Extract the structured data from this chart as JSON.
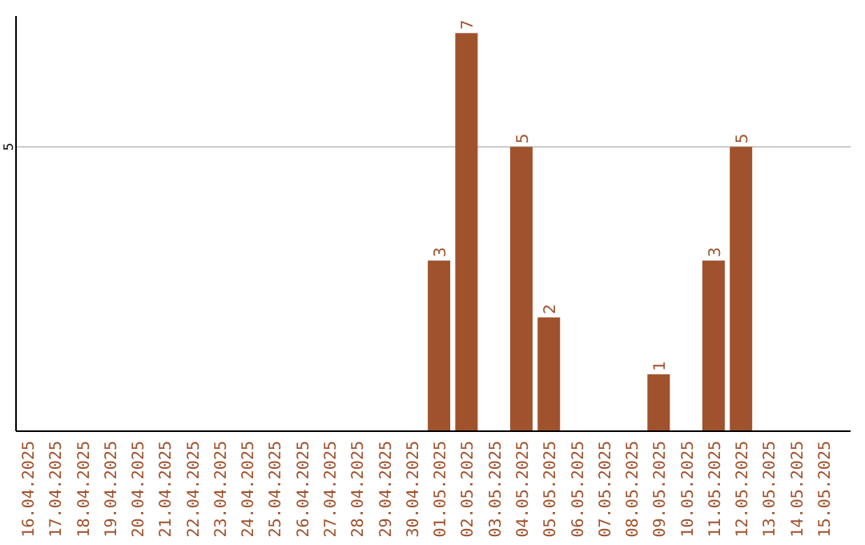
{
  "chart_data": {
    "type": "bar",
    "categories": [
      "16.04.2025",
      "17.04.2025",
      "18.04.2025",
      "19.04.2025",
      "20.04.2025",
      "21.04.2025",
      "22.04.2025",
      "23.04.2025",
      "24.04.2025",
      "25.04.2025",
      "26.04.2025",
      "27.04.2025",
      "28.04.2025",
      "29.04.2025",
      "30.04.2025",
      "01.05.2025",
      "02.05.2025",
      "03.05.2025",
      "04.05.2025",
      "05.05.2025",
      "06.05.2025",
      "07.05.2025",
      "08.05.2025",
      "09.05.2025",
      "10.05.2025",
      "11.05.2025",
      "12.05.2025",
      "13.05.2025",
      "14.05.2025",
      "15.05.2025"
    ],
    "values": [
      null,
      null,
      null,
      null,
      null,
      null,
      null,
      null,
      null,
      null,
      null,
      null,
      null,
      null,
      null,
      3,
      7,
      null,
      5,
      2,
      null,
      null,
      null,
      1,
      null,
      3,
      5,
      null,
      null,
      null
    ],
    "color": "#a0522d",
    "ylim": [
      0,
      7.3
    ],
    "yticks": [
      5
    ],
    "grid": "y",
    "data_labels": true
  }
}
